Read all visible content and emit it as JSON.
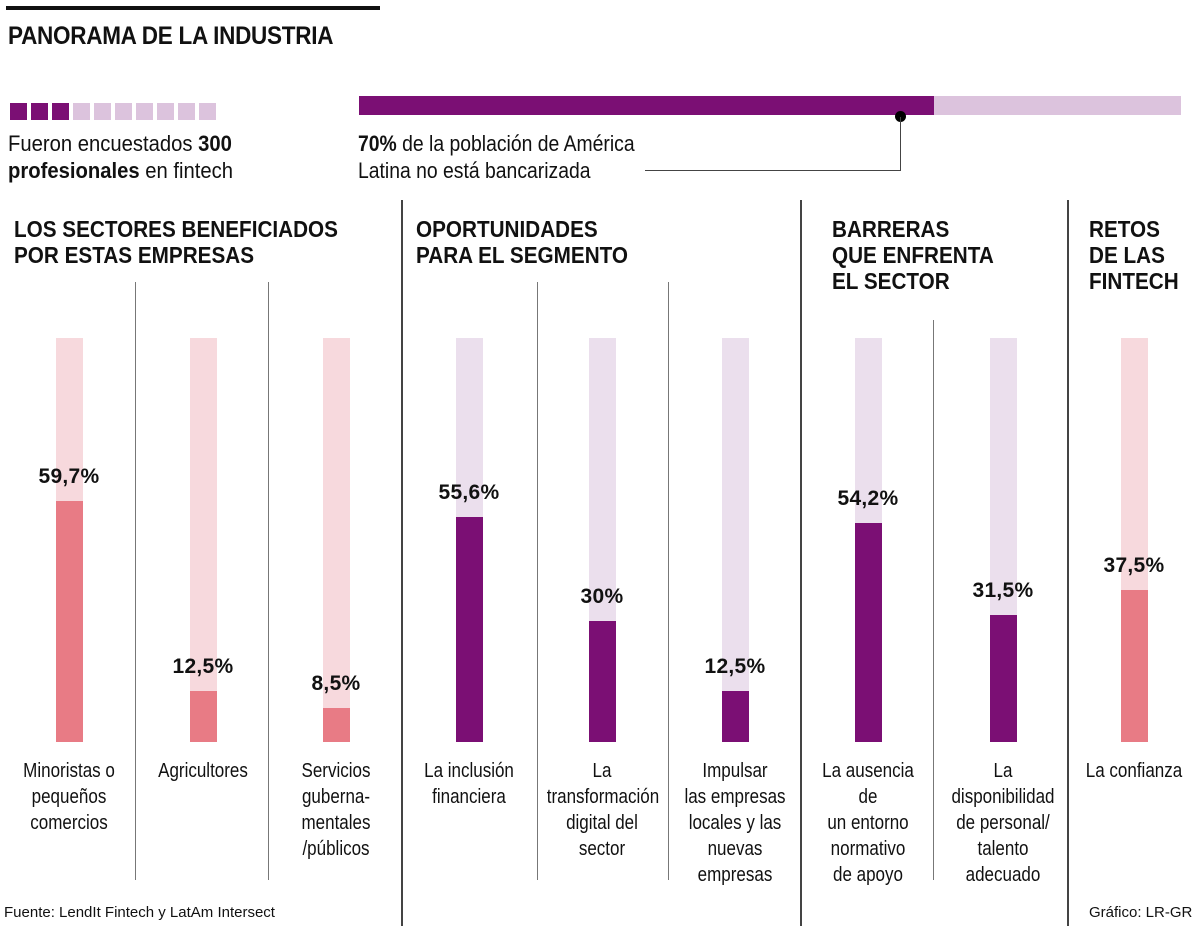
{
  "header": {
    "title": "PANORAMA DE LA INDUSTRIA"
  },
  "survey": {
    "squares_total": 10,
    "squares_filled": 3,
    "text_pre": "Fueron encuestados ",
    "text_bold_1": "300",
    "text_bold_2": "profesionales",
    "text_post": " en fintech"
  },
  "unbanked": {
    "percent": 70,
    "bold": "70%",
    "line1_rest": " de la población de América",
    "line2": "Latina no está bancarizada"
  },
  "colors": {
    "purple": "#7b0f74",
    "purple_light": "#dcc3dd",
    "purple_track": "#ebdfed",
    "pink": "#e87b85",
    "pink_track": "#f7d9dd"
  },
  "sections": [
    {
      "title_lines": [
        "LOS SECTORES BENEFICIADOS",
        "POR ESTAS EMPRESAS"
      ]
    },
    {
      "title_lines": [
        "OPORTUNIDADES",
        "PARA EL SEGMENTO"
      ]
    },
    {
      "title_lines": [
        "BARRERAS",
        "QUE ENFRENTA",
        "EL SECTOR"
      ]
    },
    {
      "title_lines": [
        "RETOS",
        "DE LAS",
        "FINTECH"
      ]
    }
  ],
  "chart_data": {
    "type": "bar",
    "title": "PANORAMA DE LA INDUSTRIA",
    "ylim": [
      0,
      100
    ],
    "unit": "%",
    "grid": false,
    "groups": [
      {
        "name": "LOS SECTORES BENEFICIADOS POR ESTAS EMPRESAS",
        "color": "pink",
        "categories": [
          "Minoristas o pequeños comercios",
          "Agricultores",
          "Servicios guberna- mentales /públicos"
        ],
        "values": [
          59.7,
          12.5,
          8.5
        ],
        "labels": [
          "59,7%",
          "12,5%",
          "8,5%"
        ]
      },
      {
        "name": "OPORTUNIDADES PARA EL SEGMENTO",
        "color": "purple",
        "categories": [
          "La inclusión financiera",
          "La transformación digital del sector",
          "Impulsar las empresas locales y las nuevas empresas"
        ],
        "values": [
          55.6,
          30,
          12.5
        ],
        "labels": [
          "55,6%",
          "30%",
          "12,5%"
        ]
      },
      {
        "name": "BARRERAS QUE ENFRENTA EL SECTOR",
        "color": "purple",
        "categories": [
          "La ausencia de un entorno normativo de apoyo",
          "La disponibilidad de personal/ talento adecuado"
        ],
        "values": [
          54.2,
          31.5
        ],
        "labels": [
          "54,2%",
          "31,5%"
        ]
      },
      {
        "name": "RETOS DE LAS FINTECH",
        "color": "pink",
        "categories": [
          "La confianza"
        ],
        "values": [
          37.5
        ],
        "labels": [
          "37,5%"
        ]
      }
    ]
  },
  "bar_labels": [
    [
      "Minoristas o",
      "pequeños",
      "comercios"
    ],
    [
      "Agricultores"
    ],
    [
      "Servicios",
      "guberna-",
      "mentales",
      "/públicos"
    ],
    [
      "La inclusión",
      "financiera"
    ],
    [
      "La",
      "transformación",
      "digital del",
      "sector"
    ],
    [
      "Impulsar",
      "las empresas",
      "locales y las",
      "nuevas",
      "empresas"
    ],
    [
      "La ausencia de",
      "un entorno",
      "normativo",
      "de apoyo"
    ],
    [
      "La",
      "disponibilidad",
      "de personal/",
      "talento",
      "adecuado"
    ],
    [
      "La confianza"
    ]
  ],
  "footer": {
    "source": "Fuente: LendIt Fintech y LatAm Intersect",
    "credit": "Gráfico: LR-GR"
  }
}
